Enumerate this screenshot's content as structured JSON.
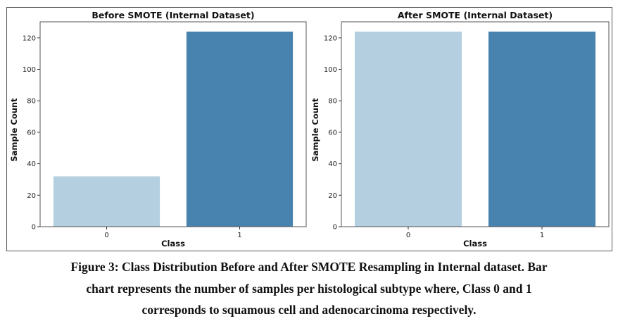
{
  "chart_data": [
    {
      "type": "bar",
      "title": "Before SMOTE (Internal Dataset)",
      "xlabel": "Class",
      "ylabel": "Sample Count",
      "categories": [
        "0",
        "1"
      ],
      "values": [
        32,
        124
      ],
      "colors": [
        "#b3cfe0",
        "#4883b0"
      ],
      "ylim": [
        0,
        130.2
      ],
      "yticks": [
        0,
        20,
        40,
        60,
        80,
        100,
        120
      ],
      "grid": false
    },
    {
      "type": "bar",
      "title": "After SMOTE (Internal Dataset)",
      "xlabel": "Class",
      "ylabel": "Sample Count",
      "categories": [
        "0",
        "1"
      ],
      "values": [
        124,
        124
      ],
      "colors": [
        "#b3cfe0",
        "#4883b0"
      ],
      "ylim": [
        0,
        130.2
      ],
      "yticks": [
        0,
        20,
        40,
        60,
        80,
        100,
        120
      ],
      "grid": false
    }
  ],
  "caption": {
    "lines": [
      "Figure 3: Class Distribution Before and After SMOTE Resampling in Internal dataset. Bar",
      "chart represents the number of samples per histological subtype where, Class 0 and 1",
      "corresponds to squamous cell and adenocarcinoma respectively."
    ]
  }
}
